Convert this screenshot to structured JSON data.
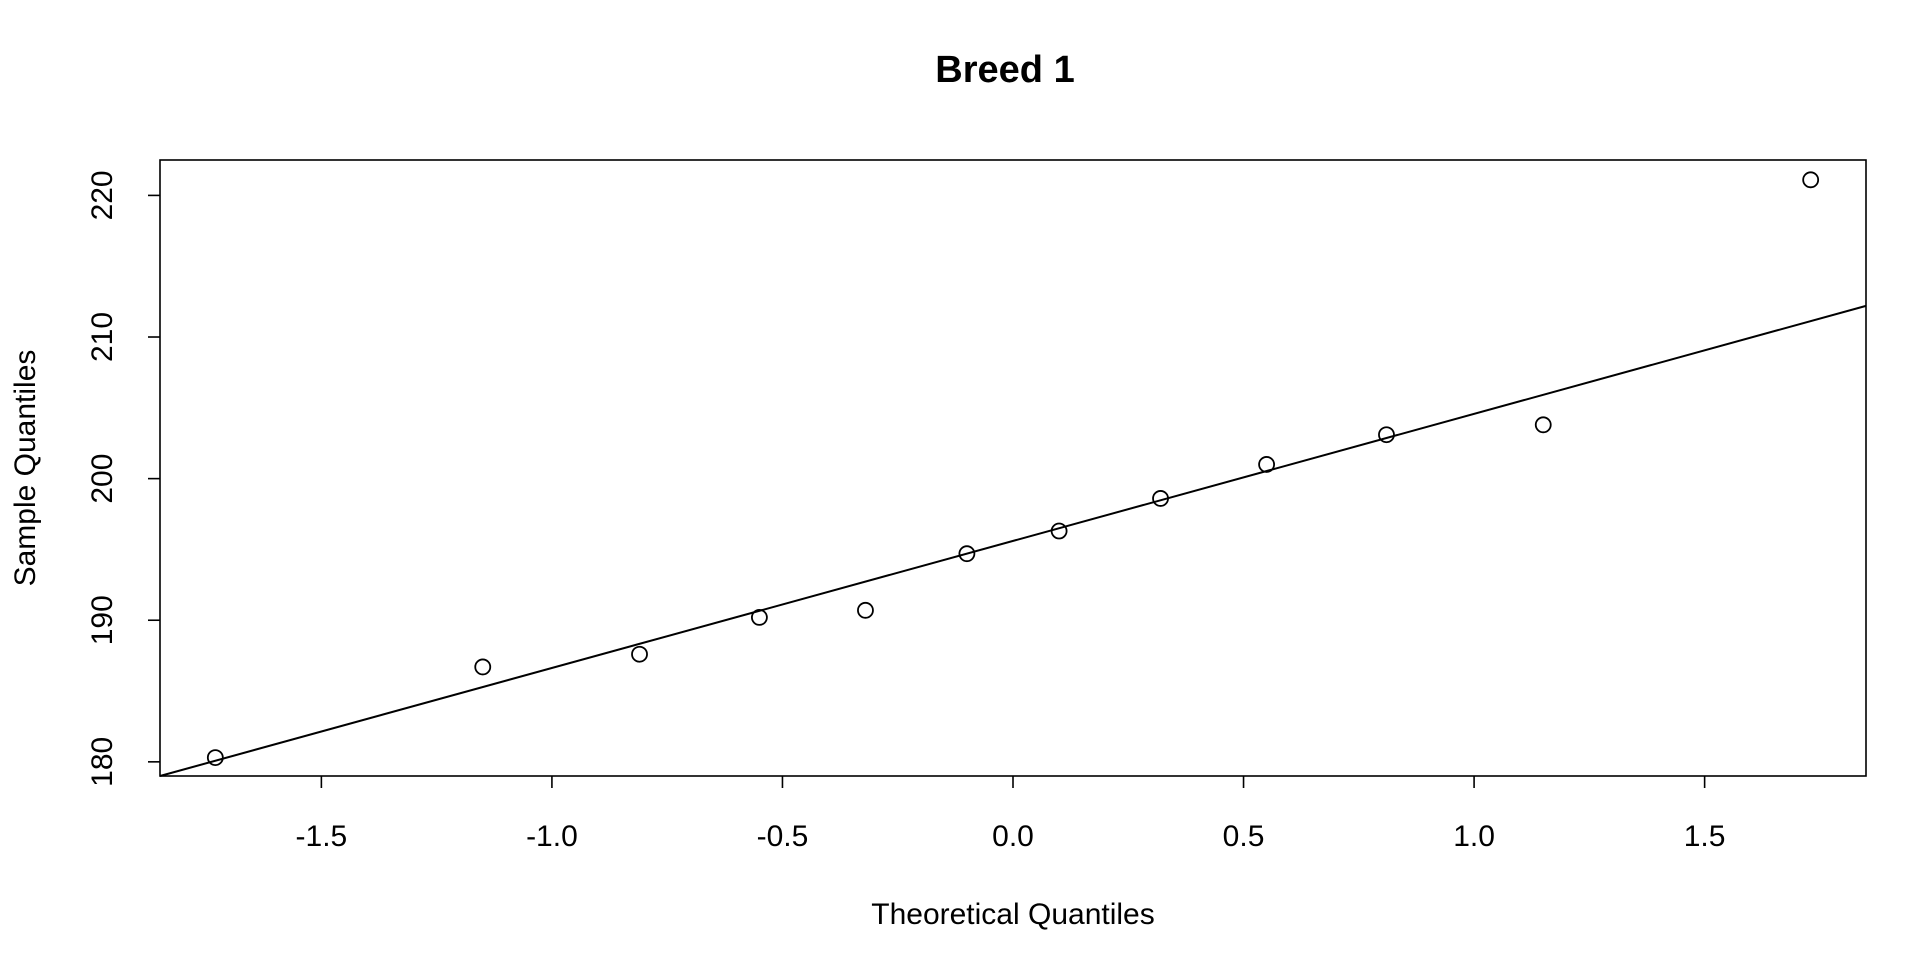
{
  "chart_data": {
    "type": "scatter",
    "title": "Breed 1",
    "xlabel": "Theoretical Quantiles",
    "ylabel": "Sample Quantiles",
    "xlim": [
      -1.85,
      1.85
    ],
    "ylim": [
      179,
      222.5
    ],
    "x_ticks": [
      -1.5,
      -1.0,
      -0.5,
      0.0,
      0.5,
      1.0,
      1.5
    ],
    "x_tick_labels": [
      "-1.5",
      "-1.0",
      "-0.5",
      "0.0",
      "0.5",
      "1.0",
      "1.5"
    ],
    "y_ticks": [
      180,
      190,
      200,
      210,
      220
    ],
    "y_tick_labels": [
      "180",
      "190",
      "200",
      "210",
      "220"
    ],
    "grid": false,
    "series": [
      {
        "marker": "open-circle",
        "color": "#000000",
        "points": [
          {
            "x": -1.73,
            "y": 180.3
          },
          {
            "x": -1.15,
            "y": 186.7
          },
          {
            "x": -0.81,
            "y": 187.6
          },
          {
            "x": -0.55,
            "y": 190.2
          },
          {
            "x": -0.32,
            "y": 190.7
          },
          {
            "x": -0.1,
            "y": 194.7
          },
          {
            "x": 0.1,
            "y": 196.3
          },
          {
            "x": 0.32,
            "y": 198.6
          },
          {
            "x": 0.55,
            "y": 201.0
          },
          {
            "x": 0.81,
            "y": 203.1
          },
          {
            "x": 1.15,
            "y": 203.8
          },
          {
            "x": 1.73,
            "y": 221.1
          }
        ]
      }
    ],
    "reference_line": {
      "type": "qqline",
      "color": "#000000",
      "points": [
        {
          "x": -1.85,
          "y": 179.0
        },
        {
          "x": 1.85,
          "y": 212.2
        }
      ]
    }
  }
}
